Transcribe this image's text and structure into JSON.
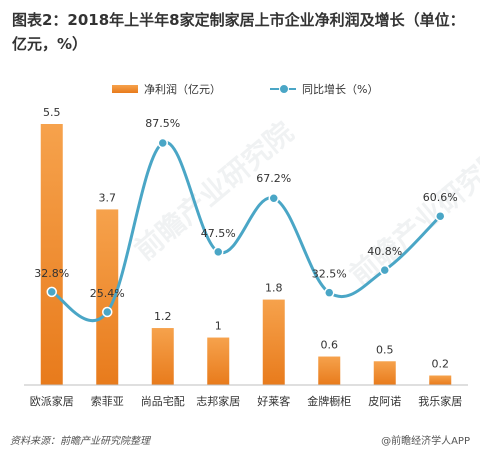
{
  "title": "图表2：2018年上半年8家定制家居上市企业净利润及增长（单位：亿元，%）",
  "legend": {
    "bar_label": "净利润（亿元）",
    "line_label": "同比增长（%）"
  },
  "source": "资料来源：前瞻产业研究院整理",
  "app": "@前瞻经济学人APP",
  "watermark": "前瞻产业研究院",
  "colors": {
    "bar_top": "#f6a24c",
    "bar_bottom": "#e87b1c",
    "line": "#4aa6c6"
  },
  "chart_data": {
    "type": "bar",
    "categories": [
      "欧派家居",
      "索菲亚",
      "尚品宅配",
      "志邦家居",
      "好莱客",
      "金牌橱柜",
      "皮阿诺",
      "我乐家居"
    ],
    "series": [
      {
        "type": "bar",
        "values": [
          5.5,
          3.7,
          1.2,
          1,
          1.8,
          0.6,
          0.5,
          0.2
        ],
        "labels": [
          "5.5",
          "3.7",
          "1.2",
          "1",
          "1.8",
          "0.6",
          "0.5",
          "0.2"
        ]
      },
      {
        "type": "line",
        "values": [
          32.8,
          25.4,
          87.5,
          47.5,
          67.2,
          32.5,
          40.8,
          60.6
        ],
        "labels": [
          "32.8%",
          "25.4%",
          "87.5%",
          "47.5%",
          "67.2%",
          "32.5%",
          "40.8%",
          "60.6%"
        ]
      }
    ],
    "grid": false,
    "legend_position": "top"
  }
}
